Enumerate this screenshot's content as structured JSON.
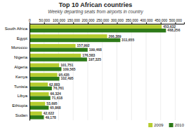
{
  "chart_data": {
    "type": "bar",
    "orientation": "horizontal",
    "title": "Top 10 African countries",
    "subtitle": "Weekly departing seats from airports in country",
    "categories": [
      "South Africa",
      "Egypt",
      "Morocco",
      "Nigeria",
      "Algeria",
      "Kenya",
      "Tunisia",
      "Libya",
      "Ethiopia",
      "Sudan"
    ],
    "series": [
      {
        "name": "2009",
        "color": "#b5cc2e",
        "values": [
          453632,
          266389,
          157992,
          176583,
          101751,
          95435,
          62883,
          66324,
          53695,
          42622
        ],
        "value_labels": [
          "453,632",
          "266,389",
          "157,992",
          "176,583",
          "101,751",
          "95,435",
          "62,883",
          "66,324",
          "53,695",
          "42,622"
        ]
      },
      {
        "name": "2010",
        "color": "#2d7a18",
        "values": [
          468256,
          311655,
          199468,
          197325,
          109565,
          102495,
          76761,
          71618,
          65868,
          49178
        ],
        "value_labels": [
          "468,256",
          "311,655",
          "199,468",
          "197,325",
          "109,565",
          "102,495",
          "76,761",
          "71,618",
          "65,868",
          "49,178"
        ]
      }
    ],
    "xlim": [
      0,
      530000
    ],
    "xticks": [
      0,
      {
        "value": 50000,
        "label": "50,000"
      },
      {
        "value": 100000,
        "label": "100,000"
      },
      {
        "value": 150000,
        "label": "150,000"
      },
      {
        "value": 200000,
        "label": "200,000"
      },
      {
        "value": 250000,
        "label": "250,000"
      },
      {
        "value": 300000,
        "label": "300,000"
      },
      {
        "value": 350000,
        "label": "350,000"
      },
      {
        "value": 400000,
        "label": "400,000"
      },
      {
        "value": 450000,
        "label": "450,000"
      },
      {
        "value": 500000,
        "label": "500,000"
      }
    ],
    "grid": true,
    "legend": "lower right",
    "data_labels": true
  }
}
